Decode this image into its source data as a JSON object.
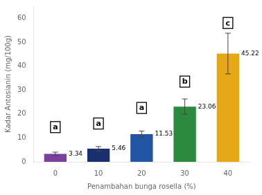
{
  "chart_data": {
    "type": "bar",
    "categories": [
      "0",
      "10",
      "20",
      "30",
      "40"
    ],
    "values": [
      3.34,
      5.46,
      11.53,
      23.06,
      45.22
    ],
    "errors": [
      0.7,
      0.9,
      1.3,
      3.2,
      8.5
    ],
    "colors": [
      "#7b3f9e",
      "#1a2f6e",
      "#2255a4",
      "#2b8a3e",
      "#e6a817"
    ],
    "data_labels": true,
    "annotations": [
      {
        "text": "a",
        "x": "0",
        "y": 14.5
      },
      {
        "text": "a",
        "x": "10",
        "y": 16.0
      },
      {
        "text": "a",
        "x": "20",
        "y": 22.5
      },
      {
        "text": "b",
        "x": "30",
        "y": 33.5
      },
      {
        "text": "c",
        "x": "40",
        "y": 58.0
      }
    ],
    "xlabel": "Penambahan bunga rosella (%)",
    "ylabel": "Kadar Antosianin (mg/100g)",
    "ylim": [
      0,
      65
    ],
    "yticks": [
      0,
      10,
      20,
      30,
      40,
      50,
      60
    ],
    "grid": false
  }
}
